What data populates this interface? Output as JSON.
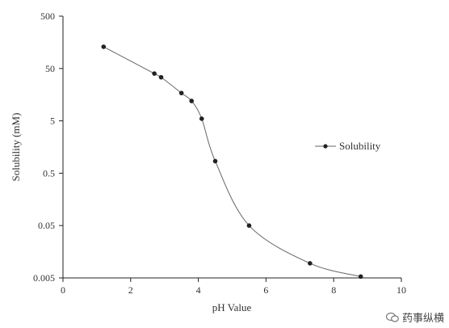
{
  "chart_data": {
    "type": "line",
    "xlabel": "pH Value",
    "ylabel": "Solubility (mM)",
    "xlim": [
      0,
      10
    ],
    "ylim": [
      0.005,
      500
    ],
    "yscale": "log",
    "x_ticks": [
      "0",
      "2",
      "4",
      "6",
      "8",
      "10"
    ],
    "y_ticks": [
      "0.005",
      "0.05",
      "0.5",
      "5",
      "50",
      "500"
    ],
    "legend": {
      "placement": "right",
      "entries": [
        "Solubility"
      ]
    },
    "grid": false,
    "series": [
      {
        "name": "Solubility",
        "x": [
          1.2,
          2.7,
          2.9,
          3.5,
          3.8,
          4.1,
          4.5,
          5.5,
          7.3,
          8.8
        ],
        "y": [
          130,
          40,
          34,
          17,
          12,
          5.5,
          0.85,
          0.05,
          0.0095,
          0.0053
        ]
      }
    ]
  },
  "watermark": {
    "text": "药事纵横"
  }
}
